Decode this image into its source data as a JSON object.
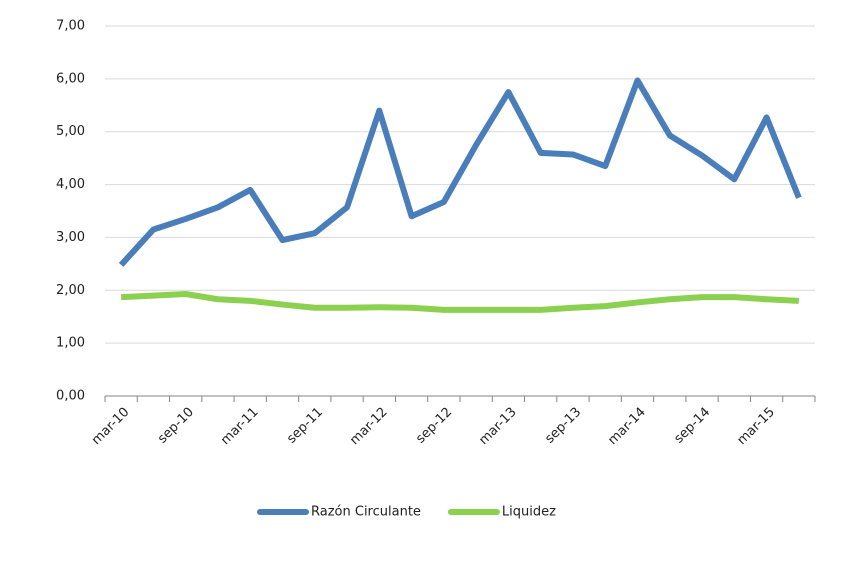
{
  "chart_data": {
    "type": "line",
    "categories": [
      "mar-10",
      null,
      "sep-10",
      null,
      "mar-11",
      null,
      "sep-11",
      null,
      "mar-12",
      null,
      "sep-12",
      null,
      "mar-13",
      null,
      "sep-13",
      null,
      "mar-14",
      null,
      "sep-14",
      null,
      "mar-15",
      null
    ],
    "series": [
      {
        "name": "Razón Circulante",
        "color": "#4a7ebb",
        "values": [
          2.48,
          3.15,
          3.35,
          3.57,
          3.9,
          2.95,
          3.08,
          3.57,
          5.4,
          3.4,
          3.67,
          4.75,
          5.75,
          4.6,
          4.57,
          4.35,
          5.97,
          4.93,
          4.55,
          4.1,
          5.27,
          3.75
        ]
      },
      {
        "name": "Liquidez",
        "color": "#8cd04f",
        "values": [
          1.87,
          1.9,
          1.93,
          1.83,
          1.8,
          1.73,
          1.67,
          1.67,
          1.68,
          1.67,
          1.63,
          1.63,
          1.63,
          1.63,
          1.67,
          1.7,
          1.77,
          1.83,
          1.87,
          1.87,
          1.83,
          1.8
        ]
      }
    ],
    "ylim": [
      0,
      7
    ],
    "yticks": [
      {
        "value": 0,
        "label": "0,00"
      },
      {
        "value": 1,
        "label": "1,00"
      },
      {
        "value": 2,
        "label": "2,00"
      },
      {
        "value": 3,
        "label": "3,00"
      },
      {
        "value": 4,
        "label": "4,00"
      },
      {
        "value": 5,
        "label": "5,00"
      },
      {
        "value": 6,
        "label": "6,00"
      },
      {
        "value": 7,
        "label": "7,00"
      }
    ],
    "grid": true,
    "legend": "bottom"
  }
}
